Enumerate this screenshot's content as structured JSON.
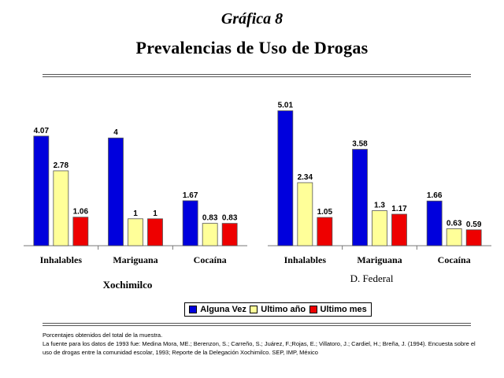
{
  "header": {
    "subtitle": "Gráfica 8",
    "title": "Prevalencias de Uso de Drogas"
  },
  "chart_data": [
    {
      "type": "bar",
      "title": "Xochimilco",
      "categories": [
        "Inhalables",
        "Mariguana",
        "Cocaína"
      ],
      "series": [
        {
          "name": "Alguna Vez",
          "color": "#0000dd",
          "values": [
            4.07,
            4,
            1.67
          ],
          "labels": [
            "4.07",
            "4",
            "1.67"
          ]
        },
        {
          "name": "Ultimo año",
          "color": "#ffff99",
          "values": [
            2.78,
            1,
            0.83
          ],
          "labels": [
            "2.78",
            "1",
            "0.83"
          ]
        },
        {
          "name": "Ultimo mes",
          "color": "#ee0000",
          "values": [
            1.06,
            1,
            0.83
          ],
          "labels": [
            "1.06",
            "1",
            "0.83"
          ]
        }
      ],
      "ylim": [
        0,
        5.5
      ],
      "grid": false
    },
    {
      "type": "bar",
      "title": "D. Federal",
      "categories": [
        "Inhalables",
        "Mariguana",
        "Cocaína"
      ],
      "series": [
        {
          "name": "Alguna Vez",
          "color": "#0000dd",
          "values": [
            5.01,
            3.58,
            1.66
          ],
          "labels": [
            "5.01",
            "3.58",
            "1.66"
          ]
        },
        {
          "name": "Ultimo año",
          "color": "#ffff99",
          "values": [
            2.34,
            1.3,
            0.63
          ],
          "labels": [
            "2.34",
            "1.3",
            "0.63"
          ]
        },
        {
          "name": "Ultimo mes",
          "color": "#ee0000",
          "values": [
            1.05,
            1.17,
            0.59
          ],
          "labels": [
            "1.05",
            "1.17",
            "0.59"
          ]
        }
      ],
      "ylim": [
        0,
        5.5
      ],
      "grid": false
    }
  ],
  "legend": {
    "placement": "bottom",
    "items": [
      {
        "label": "Alguna Vez",
        "color": "#0000dd"
      },
      {
        "label": "Ultimo año",
        "color": "#ffff99"
      },
      {
        "label": "Ultimo mes",
        "color": "#ee0000"
      }
    ]
  },
  "notes": {
    "line1": "Porcentajes obtenidos del total de la muestra.",
    "line2": "La fuente para los datos de 1993 fue: Medina Mora, ME.; Berenzon, S.; Carreño, S.; Juárez, F.;Rojas, E.; Villatoro, J.; Cardiel, H.; Breña, J. (1994). Encuesta sobre el uso de drogas entre la comunidad escolar, 1993; Reporte de la Delegación Xochimilco. SEP, IMP, México"
  }
}
